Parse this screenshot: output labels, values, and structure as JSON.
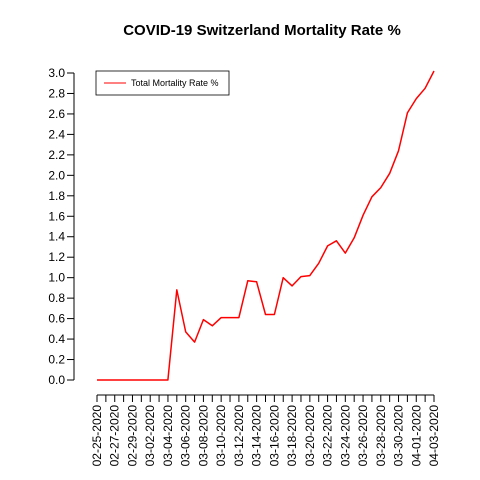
{
  "chart_data": {
    "type": "line",
    "title": "COVID-19 Switzerland Mortality Rate %",
    "xlabel": "",
    "ylabel": "",
    "ylim": [
      0.0,
      3.0
    ],
    "yticks": [
      "0.0",
      "0.2",
      "0.4",
      "0.6",
      "0.8",
      "1.0",
      "1.2",
      "1.4",
      "1.6",
      "1.8",
      "2.0",
      "2.2",
      "2.4",
      "2.6",
      "2.8",
      "3.0"
    ],
    "xticks": [
      "02-25-2020",
      "02-27-2020",
      "02-29-2020",
      "03-02-2020",
      "03-04-2020",
      "03-06-2020",
      "03-08-2020",
      "03-10-2020",
      "03-12-2020",
      "03-14-2020",
      "03-16-2020",
      "03-18-2020",
      "03-20-2020",
      "03-22-2020",
      "03-24-2020",
      "03-26-2020",
      "03-28-2020",
      "03-30-2020",
      "04-01-2020",
      "04-03-2020"
    ],
    "legend_position": "top-left",
    "grid": false,
    "series": [
      {
        "name": "Total Mortality Rate %",
        "color": "#ff0000",
        "x": [
          "02-25-2020",
          "02-26-2020",
          "02-27-2020",
          "02-28-2020",
          "02-29-2020",
          "03-01-2020",
          "03-02-2020",
          "03-03-2020",
          "03-04-2020",
          "03-05-2020",
          "03-06-2020",
          "03-07-2020",
          "03-08-2020",
          "03-09-2020",
          "03-10-2020",
          "03-11-2020",
          "03-12-2020",
          "03-13-2020",
          "03-14-2020",
          "03-15-2020",
          "03-16-2020",
          "03-17-2020",
          "03-18-2020",
          "03-19-2020",
          "03-20-2020",
          "03-21-2020",
          "03-22-2020",
          "03-23-2020",
          "03-24-2020",
          "03-25-2020",
          "03-26-2020",
          "03-27-2020",
          "03-28-2020",
          "03-29-2020",
          "03-30-2020",
          "03-31-2020",
          "04-01-2020",
          "04-02-2020",
          "04-03-2020"
        ],
        "values": [
          0.0,
          0.0,
          0.0,
          0.0,
          0.0,
          0.0,
          0.0,
          0.0,
          0.0,
          0.88,
          0.47,
          0.37,
          0.59,
          0.53,
          0.61,
          0.61,
          0.61,
          0.97,
          0.96,
          0.64,
          0.64,
          1.0,
          0.92,
          1.01,
          1.02,
          1.14,
          1.31,
          1.36,
          1.24,
          1.39,
          1.61,
          1.79,
          1.88,
          2.02,
          2.24,
          2.61,
          2.75,
          2.85,
          3.02
        ]
      }
    ]
  }
}
